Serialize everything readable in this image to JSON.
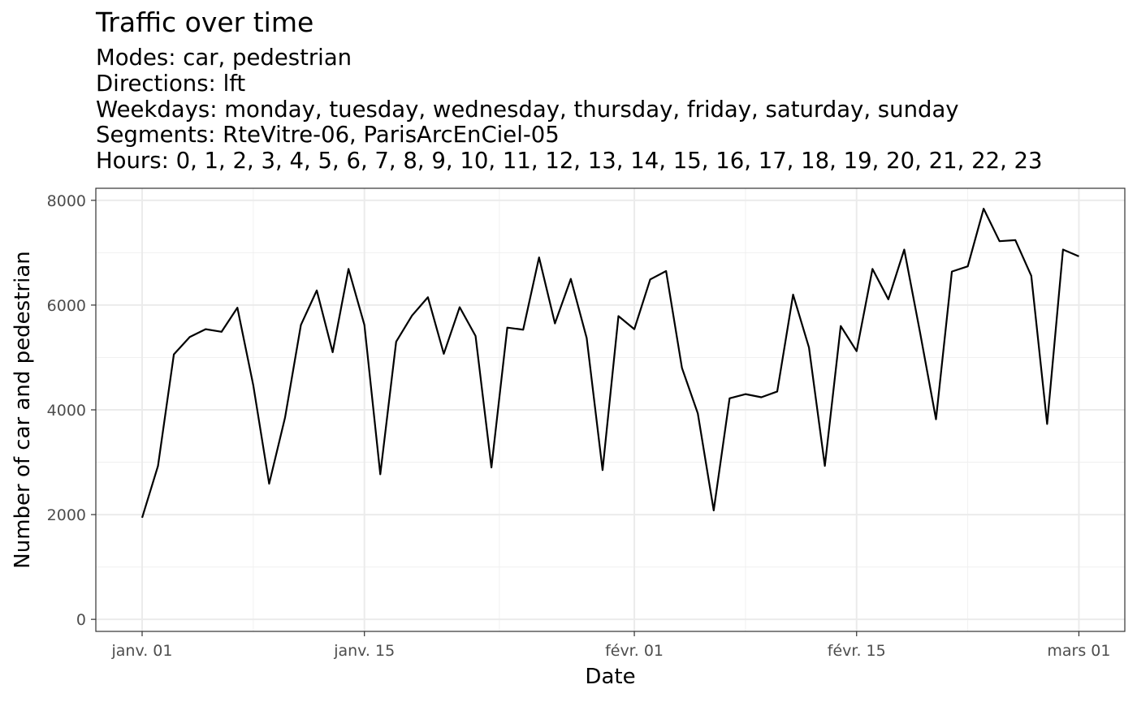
{
  "chart_data": {
    "type": "line",
    "title": "Traffic over time",
    "subtitle_lines": [
      "Modes: car, pedestrian",
      "Directions: lft",
      "Weekdays: monday, tuesday, wednesday, thursday, friday, saturday, sunday",
      "Segments: RteVitre-06, ParisArcEnCiel-05",
      "Hours: 0, 1, 2, 3, 4, 5, 6, 7, 8, 9, 10, 11, 12, 13, 14, 15, 16, 17, 18, 19, 20, 21, 22, 23"
    ],
    "xlabel": "Date",
    "ylabel": "Number of car and pedestrian",
    "x_start": "janv. 01",
    "x_end": "mars 01",
    "x_ticks": [
      {
        "label": "janv. 01",
        "day": 0
      },
      {
        "label": "janv. 15",
        "day": 14
      },
      {
        "label": "févr. 01",
        "day": 31
      },
      {
        "label": "févr. 15",
        "day": 45
      },
      {
        "label": "mars 01",
        "day": 59
      }
    ],
    "y_ticks": [
      0,
      2000,
      4000,
      6000,
      8000
    ],
    "ylim": [
      -230,
      8230
    ],
    "grid": true,
    "series": [
      {
        "color": "#000000",
        "values": [
          1940,
          2930,
          5060,
          5390,
          5540,
          5490,
          5950,
          4470,
          2590,
          3850,
          5620,
          6280,
          5100,
          6690,
          5620,
          2770,
          5300,
          5800,
          6150,
          5070,
          5960,
          5410,
          2900,
          5570,
          5530,
          6910,
          5650,
          6500,
          5370,
          2850,
          5790,
          5540,
          6490,
          6650,
          4800,
          3930,
          2080,
          4220,
          4300,
          4240,
          4350,
          6200,
          5190,
          2930,
          5600,
          5120,
          6690,
          6110,
          7060,
          5470,
          3820,
          6640,
          6740,
          7840,
          7220,
          7240,
          6560,
          3730,
          7060,
          6930
        ]
      }
    ]
  }
}
